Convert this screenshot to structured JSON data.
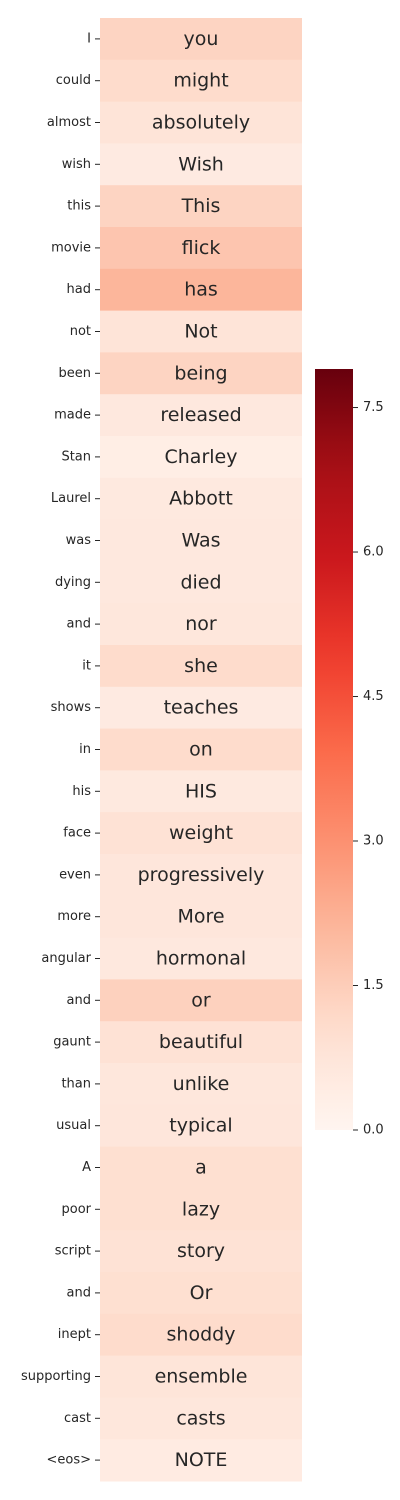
{
  "chart_data": {
    "type": "heatmap",
    "title": "",
    "xlabel": "",
    "ylabel": "",
    "colormap": "Reds",
    "vmin": 0.0,
    "vmax": 7.9,
    "colorbar_ticks": [
      0.0,
      1.5,
      3.0,
      4.5,
      6.0,
      7.5
    ],
    "colorbar_tick_labels": [
      "0.0",
      "1.5",
      "3.0",
      "4.5",
      "6.0",
      "7.5"
    ],
    "row_labels": [
      "I",
      "could",
      "almost",
      "wish",
      "this",
      "movie",
      "had",
      "not",
      "been",
      "made",
      "Stan",
      "Laurel",
      "was",
      "dying",
      "and",
      "it",
      "shows",
      "in",
      "his",
      "face",
      "even",
      "more",
      "angular",
      "and",
      "gaunt",
      "than",
      "usual",
      "A",
      "poor",
      "script",
      "and",
      "inept",
      "supporting",
      "cast",
      "<eos>"
    ],
    "cell_labels": [
      "you",
      "might",
      "absolutely",
      "Wish",
      "This",
      "flick",
      "has",
      "Not",
      "being",
      "released",
      "Charley",
      "Abbott",
      "Was",
      "died",
      "nor",
      "she",
      "teaches",
      "on",
      "HIS",
      "weight",
      "progressively",
      "More",
      "hormonal",
      "or",
      "beautiful",
      "unlike",
      "typical",
      "a",
      "lazy",
      "story",
      "Or",
      "shoddy",
      "ensemble",
      "casts",
      "NOTE"
    ],
    "values": [
      1.3,
      1.1,
      0.8,
      0.5,
      1.3,
      1.7,
      2.1,
      0.8,
      1.3,
      0.6,
      0.35,
      0.55,
      0.6,
      0.6,
      0.65,
      1.1,
      0.5,
      1.1,
      0.55,
      0.9,
      0.7,
      0.7,
      0.6,
      1.4,
      0.9,
      0.65,
      0.7,
      1.0,
      1.0,
      0.9,
      1.0,
      1.1,
      0.75,
      0.65,
      0.45
    ]
  }
}
